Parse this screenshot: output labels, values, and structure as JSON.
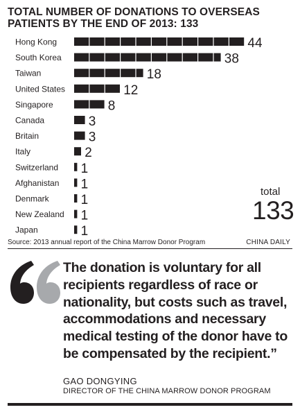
{
  "title_lines": [
    "TOTAL NUMBER OF DONATIONS TO OVERSEAS",
    "PATIENTS BY THE END OF 2013: 133"
  ],
  "chart_data": {
    "type": "bar",
    "orientation": "horizontal",
    "categories": [
      "Hong Kong",
      "South Korea",
      "Taiwan",
      "United States",
      "Singapore",
      "Canada",
      "Britain",
      "Italy",
      "Switzerland",
      "Afghanistan",
      "Denmark",
      "New Zealand",
      "Japan"
    ],
    "values": [
      44,
      38,
      18,
      12,
      8,
      3,
      3,
      2,
      1,
      1,
      1,
      1,
      1
    ],
    "title": "TOTAL NUMBER OF DONATIONS TO OVERSEAS PATIENTS BY THE END OF 2013: 133",
    "total_label": "total",
    "total_value": "133",
    "bar_color": "#231f20"
  },
  "source": "Source: 2013 annual report of the China Marrow Donor Program",
  "credit": "CHINA DAILY",
  "quote_lines": [
    "The donation is voluntary for all",
    "recipients regardless of race or",
    "nationality, but costs such as travel,",
    "accommodations and necessary",
    "medical testing of the donor have to",
    "be compensated by the recipient.”"
  ],
  "attribution": {
    "name": "GAO DONGYING",
    "title": "DIRECTOR OF THE CHINA MARROW DONOR PROGRAM"
  },
  "colors": {
    "ink": "#231f20",
    "quote_mark_left": "#231f20",
    "quote_mark_right": "#a7a9ac"
  }
}
